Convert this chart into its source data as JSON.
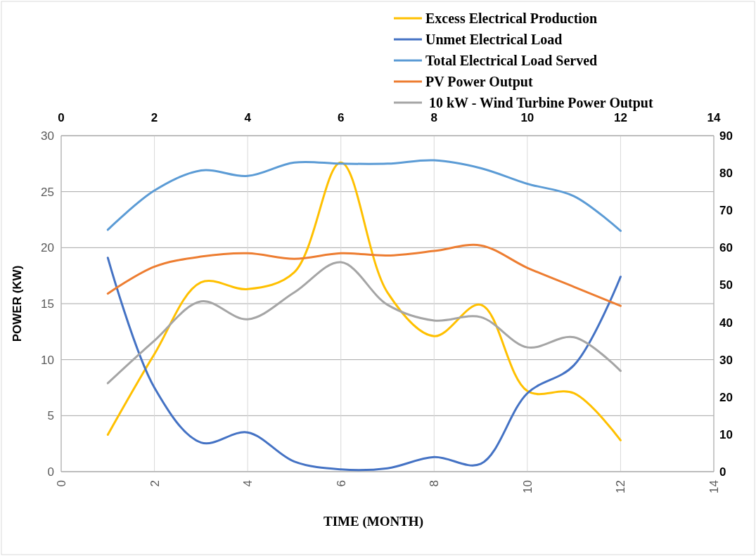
{
  "chart_data": {
    "type": "line",
    "xlabel": "TIME  (MONTH)",
    "ylabel": "POWER (KW)",
    "xlim": [
      0,
      14
    ],
    "xticks": [
      0,
      2,
      4,
      6,
      8,
      10,
      12,
      14
    ],
    "x2lim": [
      0,
      14
    ],
    "x2ticks": [
      0,
      2,
      4,
      6,
      8,
      10,
      12,
      14
    ],
    "ylim": [
      0,
      30
    ],
    "yticks": [
      0,
      5,
      10,
      15,
      20,
      25,
      30
    ],
    "y2lim": [
      0,
      90
    ],
    "y2ticks": [
      0,
      10,
      20,
      30,
      40,
      50,
      60,
      70,
      80,
      90
    ],
    "grid": true,
    "legend": "top right",
    "marker": "none",
    "line_style": "solid",
    "x": [
      1,
      2,
      3,
      4,
      5,
      6,
      7,
      8,
      9,
      10,
      11,
      12
    ],
    "series": [
      {
        "name": "Excess Electrical Production",
        "color": "#ffc000",
        "values": [
          3.3,
          10.5,
          16.9,
          16.3,
          17.8,
          27.6,
          16,
          12.1,
          14.9,
          7.2,
          7,
          2.8
        ]
      },
      {
        "name": "Unmet Electrical Load",
        "color": "#4472c4",
        "values": [
          19.1,
          7.5,
          2.6,
          3.5,
          0.9,
          0.2,
          0.3,
          1.3,
          0.7,
          7,
          9.5,
          17.4
        ]
      },
      {
        "name": "Total Electrical Load Served",
        "color": "#5b9bd5",
        "values": [
          21.6,
          25.1,
          26.9,
          26.4,
          27.6,
          27.5,
          27.5,
          27.8,
          27.1,
          25.7,
          24.6,
          21.5
        ]
      },
      {
        "name": "PV Power Output",
        "color": "#ed7d31",
        "values": [
          15.9,
          18.3,
          19.2,
          19.5,
          19,
          19.5,
          19.3,
          19.7,
          20.2,
          18.2,
          16.5,
          14.8
        ]
      },
      {
        "name": " 10 kW - Wind Turbine Power Output",
        "color": "#a5a5a5",
        "values": [
          7.9,
          11.7,
          15.2,
          13.6,
          16,
          18.7,
          14.9,
          13.5,
          13.8,
          11.1,
          12,
          9
        ]
      }
    ]
  }
}
